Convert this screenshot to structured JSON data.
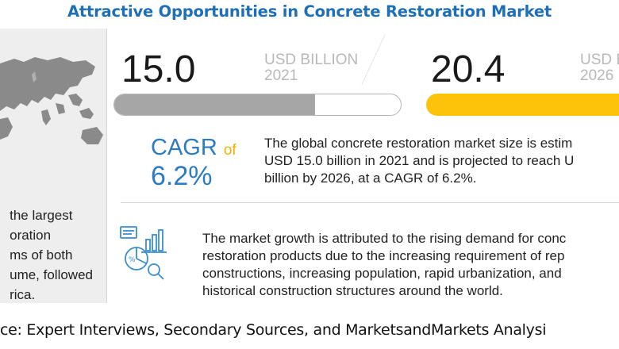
{
  "title": "Attractive Opportunities in Concrete Restoration Market",
  "left_panel": {
    "lines": [
      "the largest",
      "oration",
      "ms of both",
      "ume, followed",
      "rica."
    ],
    "map_icon": "world-map-icon"
  },
  "value_2021": {
    "number": "15.0",
    "unit_line1": "USD BILLION",
    "unit_line2": "2021",
    "bar_color": "#a6a6a6",
    "fill_fraction": 0.7
  },
  "value_2026": {
    "number": "20.4",
    "unit_line1": "USD B",
    "unit_line2": "2026",
    "bar_color": "#fdc30b"
  },
  "cagr": {
    "label": "CAGR",
    "of": "of",
    "value": "6.2%"
  },
  "description_1": [
    "The global concrete restoration market size is estim",
    "USD 15.0 billion  in 2021 and is projected to reach U",
    "billion by 2026, at a CAGR of 6.2%."
  ],
  "description_2": [
    "The market growth is attributed to the rising demand for conc",
    "restoration products due to the increasing requirement of rep",
    "constructions, increasing population, rapid urbanization, and",
    "historical construction structures around the world."
  ],
  "analysis_icon": "market-analysis-icon",
  "source": "ce: Expert Interviews, Secondary Sources, and MarketsandMarkets Analysi",
  "colors": {
    "title": "#1f6fb7",
    "cagr": "#2b7cc4",
    "accent": "#fdc30b",
    "panel_bg": "#eeeeee"
  }
}
